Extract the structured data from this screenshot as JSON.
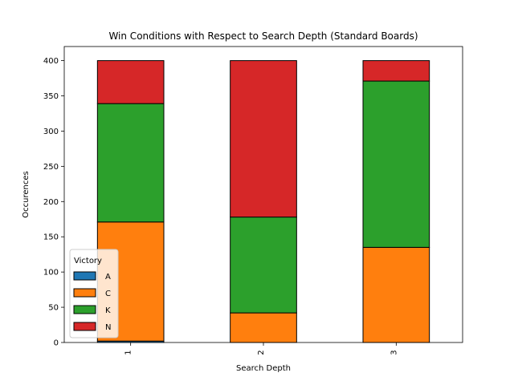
{
  "chart_data": {
    "type": "bar",
    "stacked": true,
    "title": "Win Conditions with Respect to Search Depth (Standard Boards)",
    "xlabel": "Search Depth",
    "ylabel": "Occurences",
    "categories": [
      "1",
      "2",
      "3"
    ],
    "ylim": [
      0,
      420
    ],
    "yticks": [
      0,
      50,
      100,
      150,
      200,
      250,
      300,
      350,
      400
    ],
    "grid": false,
    "legend": {
      "title": "Victory",
      "placement": "lower-left"
    },
    "series": [
      {
        "name": "A",
        "color": "#1f77b4",
        "values": [
          2,
          0,
          0
        ]
      },
      {
        "name": "C",
        "color": "#ff7f0e",
        "values": [
          169,
          42,
          135
        ]
      },
      {
        "name": "K",
        "color": "#2ca02c",
        "values": [
          168,
          136,
          236
        ]
      },
      {
        "name": "N",
        "color": "#d62728",
        "values": [
          61,
          222,
          29
        ]
      }
    ]
  }
}
